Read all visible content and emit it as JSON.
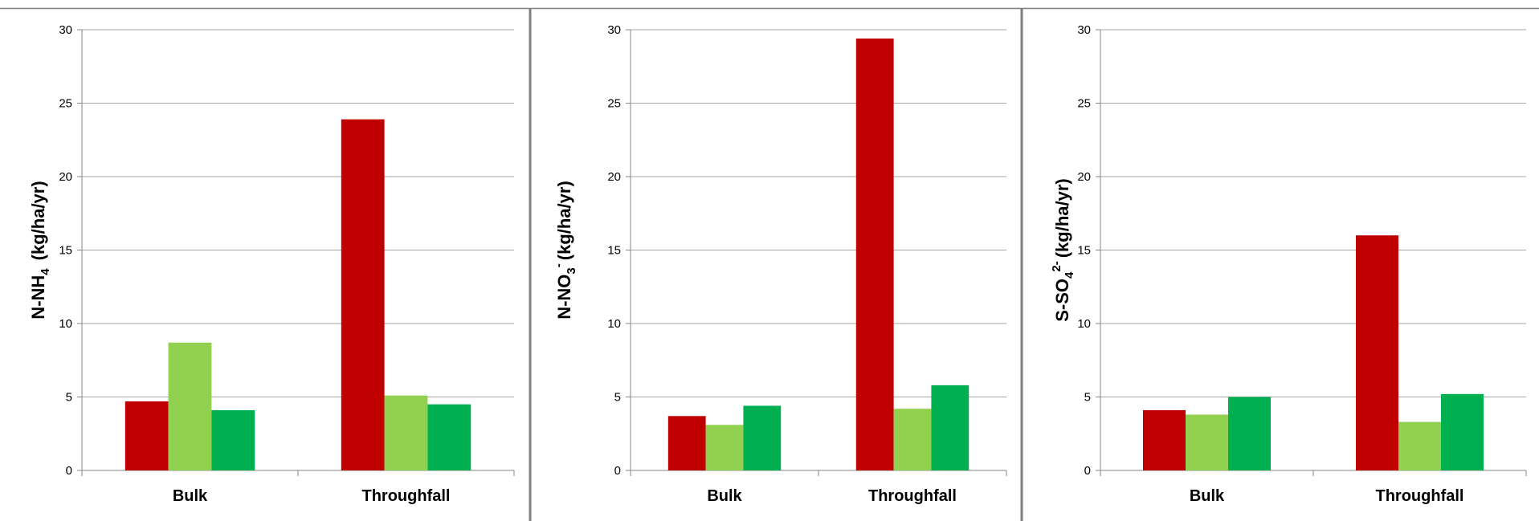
{
  "colors": {
    "series": [
      "#c00000",
      "#92d050",
      "#00b050"
    ],
    "grid": "#a6a6a6",
    "axis": "#868686",
    "separator": "#7f7f7f"
  },
  "chart_data": [
    {
      "type": "bar",
      "categories": [
        "Bulk",
        "Throughfall"
      ],
      "series": [
        {
          "values": [
            4.7,
            23.9
          ]
        },
        {
          "values": [
            8.7,
            5.1
          ]
        },
        {
          "values": [
            4.1,
            4.5
          ]
        }
      ],
      "ylabel": {
        "base": "N-NH",
        "sub": "4",
        "sup": "",
        "unit": "(kg/ha/yr)"
      },
      "yticks": [
        "0",
        "5",
        "10",
        "15",
        "20",
        "25",
        "30"
      ],
      "ylim": [
        0,
        30
      ],
      "grid": true
    },
    {
      "type": "bar",
      "categories": [
        "Bulk",
        "Throughfall"
      ],
      "series": [
        {
          "values": [
            3.7,
            29.4
          ]
        },
        {
          "values": [
            3.1,
            4.2
          ]
        },
        {
          "values": [
            4.4,
            5.8
          ]
        }
      ],
      "ylabel": {
        "base": "N-NO",
        "sub": "3",
        "sup": "-",
        "unit": "(kg/ha/yr)"
      },
      "yticks": [
        "0",
        "5",
        "10",
        "15",
        "20",
        "25",
        "30"
      ],
      "ylim": [
        0,
        30
      ],
      "grid": true
    },
    {
      "type": "bar",
      "categories": [
        "Bulk",
        "Throughfall"
      ],
      "series": [
        {
          "values": [
            4.1,
            16.0
          ]
        },
        {
          "values": [
            3.8,
            3.3
          ]
        },
        {
          "values": [
            5.0,
            5.2
          ]
        }
      ],
      "ylabel": {
        "base": "S-SO",
        "sub": "4",
        "sup": "2-",
        "unit": "(kg/ha/yr)"
      },
      "yticks": [
        "0",
        "5",
        "10",
        "15",
        "20",
        "25",
        "30"
      ],
      "ylim": [
        0,
        30
      ],
      "grid": true
    }
  ]
}
